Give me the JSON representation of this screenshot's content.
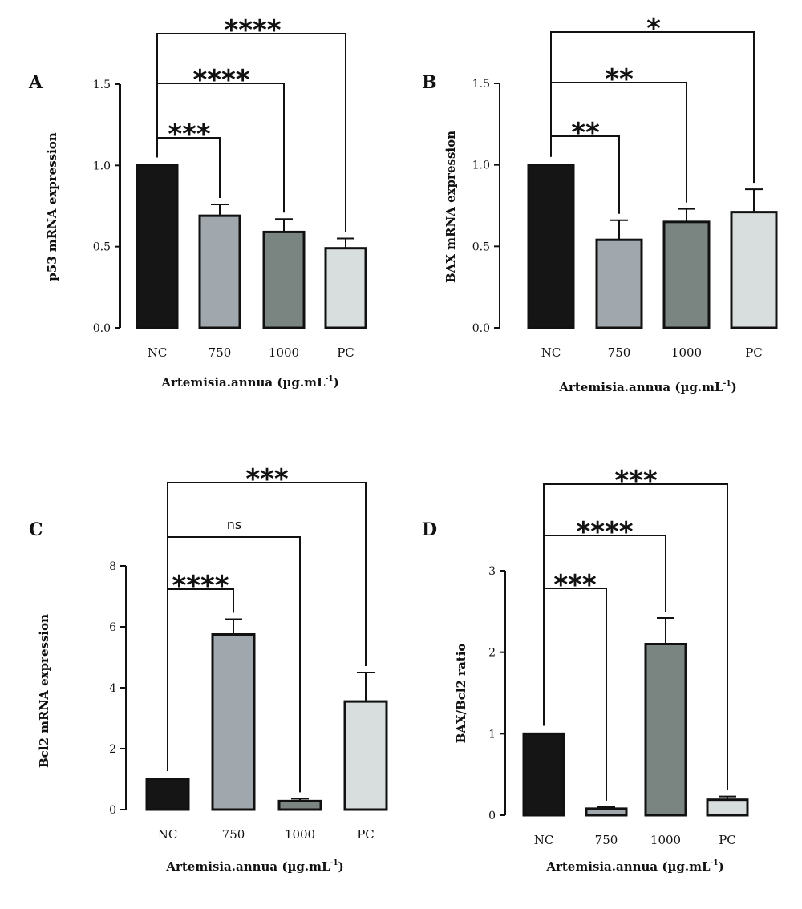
{
  "figure": {
    "panels": [
      {
        "letter": "A",
        "ylabel": "p53 mRNA expression",
        "xlabel": "Artemisia.annua (µg.mL",
        "xlabel_sup": "-1",
        "xlabel_close": ")"
      },
      {
        "letter": "B",
        "ylabel": "BAX mRNA expression",
        "xlabel": "Artemisia.annua (µg.mL",
        "xlabel_sup": "-1",
        "xlabel_close": ")"
      },
      {
        "letter": "C",
        "ylabel": "Bcl2 mRNA expression",
        "xlabel": "Artemisia.annua (µg.mL",
        "xlabel_sup": "-1",
        "xlabel_close": ")"
      },
      {
        "letter": "D",
        "ylabel": "BAX/Bcl2 ratio",
        "xlabel": "Artemisia.annua (µg.mL",
        "xlabel_sup": "-1",
        "xlabel_close": ")"
      }
    ]
  },
  "chart_data": [
    {
      "type": "bar",
      "panel": "A",
      "categories": [
        "NC",
        "750",
        "1000",
        "PC"
      ],
      "values": [
        1.0,
        0.69,
        0.59,
        0.49
      ],
      "errors": [
        0,
        0.07,
        0.08,
        0.06
      ],
      "colors": [
        "#151515",
        "#a1a8ad",
        "#7a8582",
        "#d8dedd"
      ],
      "ylim": [
        0,
        1.5
      ],
      "yticks": [
        0.0,
        0.5,
        1.0,
        1.5
      ],
      "ytick_labels": [
        "0.0",
        "0.5",
        "1.0",
        "1.5"
      ],
      "ylabel": "p53 mRNA expression",
      "xlabel": "Artemisia.annua (µg.mL-1)",
      "significance": [
        {
          "from": 0,
          "to": 1,
          "label": "***"
        },
        {
          "from": 0,
          "to": 2,
          "label": "****"
        },
        {
          "from": 0,
          "to": 3,
          "label": "****"
        }
      ]
    },
    {
      "type": "bar",
      "panel": "B",
      "categories": [
        "NC",
        "750",
        "1000",
        "PC"
      ],
      "values": [
        1.0,
        0.54,
        0.65,
        0.71
      ],
      "errors": [
        0,
        0.12,
        0.08,
        0.14
      ],
      "colors": [
        "#151515",
        "#a1a8ad",
        "#7a8582",
        "#d8dedd"
      ],
      "ylim": [
        0,
        1.5
      ],
      "yticks": [
        0.0,
        0.5,
        1.0,
        1.5
      ],
      "ytick_labels": [
        "0.0",
        "0.5",
        "1.0",
        "1.5"
      ],
      "ylabel": "BAX mRNA expression",
      "xlabel": "Artemisia.annua (µg.mL-1)",
      "significance": [
        {
          "from": 0,
          "to": 1,
          "label": "**"
        },
        {
          "from": 0,
          "to": 2,
          "label": "**"
        },
        {
          "from": 0,
          "to": 3,
          "label": "*"
        }
      ]
    },
    {
      "type": "bar",
      "panel": "C",
      "categories": [
        "NC",
        "750",
        "1000",
        "PC"
      ],
      "values": [
        1.0,
        5.75,
        0.28,
        3.55
      ],
      "errors": [
        0,
        0.5,
        0.08,
        0.95
      ],
      "colors": [
        "#151515",
        "#a1a8ad",
        "#7a8582",
        "#d8dedd"
      ],
      "ylim": [
        0,
        8
      ],
      "yticks": [
        0,
        2,
        4,
        6,
        8
      ],
      "ytick_labels": [
        "0",
        "2",
        "4",
        "6",
        "8"
      ],
      "ylabel": "Bcl2 mRNA expression",
      "xlabel": "Artemisia.annua (µg.mL-1)",
      "significance": [
        {
          "from": 0,
          "to": 1,
          "label": "****"
        },
        {
          "from": 0,
          "to": 2,
          "label": "ns"
        },
        {
          "from": 0,
          "to": 3,
          "label": "***"
        }
      ]
    },
    {
      "type": "bar",
      "panel": "D",
      "categories": [
        "NC",
        "750",
        "1000",
        "PC"
      ],
      "values": [
        1.0,
        0.08,
        2.1,
        0.19
      ],
      "errors": [
        0,
        0.02,
        0.32,
        0.04
      ],
      "colors": [
        "#151515",
        "#a1a8ad",
        "#7a8582",
        "#d8dedd"
      ],
      "ylim": [
        0,
        3
      ],
      "yticks": [
        0,
        1,
        2,
        3
      ],
      "ytick_labels": [
        "0",
        "1",
        "2",
        "3"
      ],
      "ylabel": "BAX/Bcl2 ratio",
      "xlabel": "Artemisia.annua (µg.mL-1)",
      "significance": [
        {
          "from": 0,
          "to": 1,
          "label": "***"
        },
        {
          "from": 0,
          "to": 2,
          "label": "****"
        },
        {
          "from": 0,
          "to": 3,
          "label": "***"
        }
      ]
    }
  ]
}
